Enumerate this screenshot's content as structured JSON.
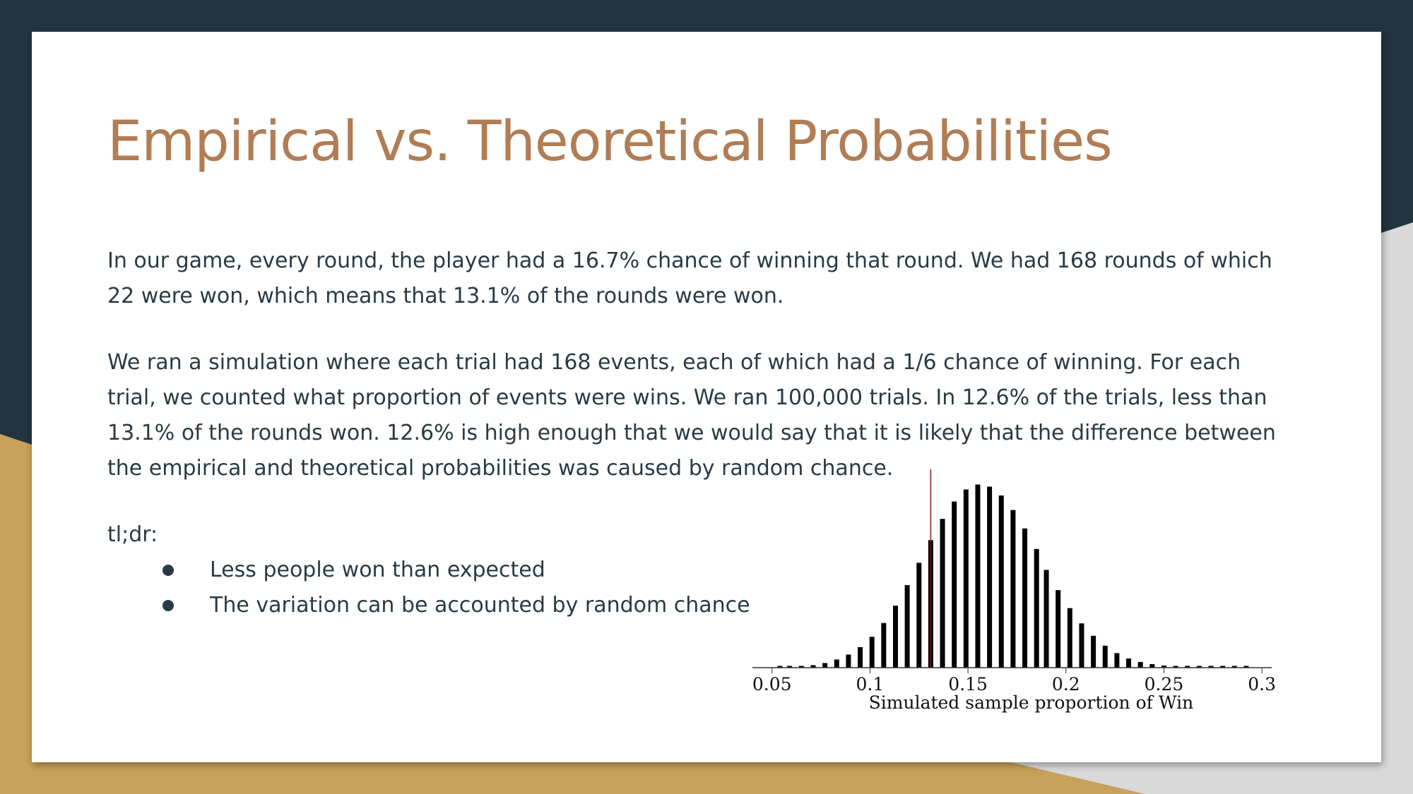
{
  "slide": {
    "title": "Empirical vs. Theoretical Probabilities",
    "paragraph_1": "In our game, every round, the player had a 16.7% chance of winning that round. We had 168 rounds of which 22 were won, which means that 13.1% of the rounds were won.",
    "paragraph_2": "We ran a simulation where each trial had 168 events, each of which had a 1/6 chance of winning. For each trial, we counted what proportion of events were wins. We ran 100,000 trials. In 12.6% of the trials, less than 13.1% of the rounds won. 12.6% is high enough that we would say that it is likely that the difference between the empirical and theoretical probabilities was caused by random chance.",
    "tldr_label": "tl;dr:",
    "bullets": [
      "Less people won than expected",
      "The variation can be accounted by random chance"
    ]
  },
  "colors": {
    "background_navy": "#21343f",
    "accent_gold": "#c8a15a",
    "title_color": "#b07d55",
    "text_color": "#2a3a45",
    "marker_line": "#8b1a1a"
  },
  "chart_data": {
    "type": "bar",
    "xlabel": "Simulated sample proportion of Win",
    "xlim": [
      0.04,
      0.305
    ],
    "xticks": [
      0.05,
      0.1,
      0.15,
      0.2,
      0.25,
      0.3
    ],
    "xtick_labels": [
      "0.05",
      "0.1",
      "0.15",
      "0.2",
      "0.25",
      "0.3"
    ],
    "marker_value": 0.131,
    "x": [
      0.054,
      0.059,
      0.065,
      0.071,
      0.077,
      0.083,
      0.089,
      0.095,
      0.101,
      0.107,
      0.113,
      0.119,
      0.125,
      0.131,
      0.137,
      0.143,
      0.149,
      0.155,
      0.161,
      0.167,
      0.173,
      0.179,
      0.185,
      0.19,
      0.196,
      0.202,
      0.208,
      0.214,
      0.22,
      0.226,
      0.232,
      0.238,
      0.244,
      0.25,
      0.256,
      0.262,
      0.268,
      0.274,
      0.28,
      0.286,
      0.292
    ],
    "values": [
      0.0001,
      0.0002,
      0.0004,
      0.0007,
      0.0013,
      0.0023,
      0.0037,
      0.0058,
      0.0087,
      0.0126,
      0.0175,
      0.0233,
      0.0296,
      0.036,
      0.042,
      0.0469,
      0.0503,
      0.0517,
      0.0511,
      0.0486,
      0.0445,
      0.0393,
      0.0335,
      0.0276,
      0.0219,
      0.0168,
      0.0125,
      0.009,
      0.0062,
      0.0041,
      0.0026,
      0.0016,
      0.001,
      0.0006,
      0.0003,
      0.0002,
      0.0001,
      0.0001,
      0.0001,
      5e-05,
      5e-05
    ],
    "ylim": [
      0,
      0.052
    ]
  }
}
